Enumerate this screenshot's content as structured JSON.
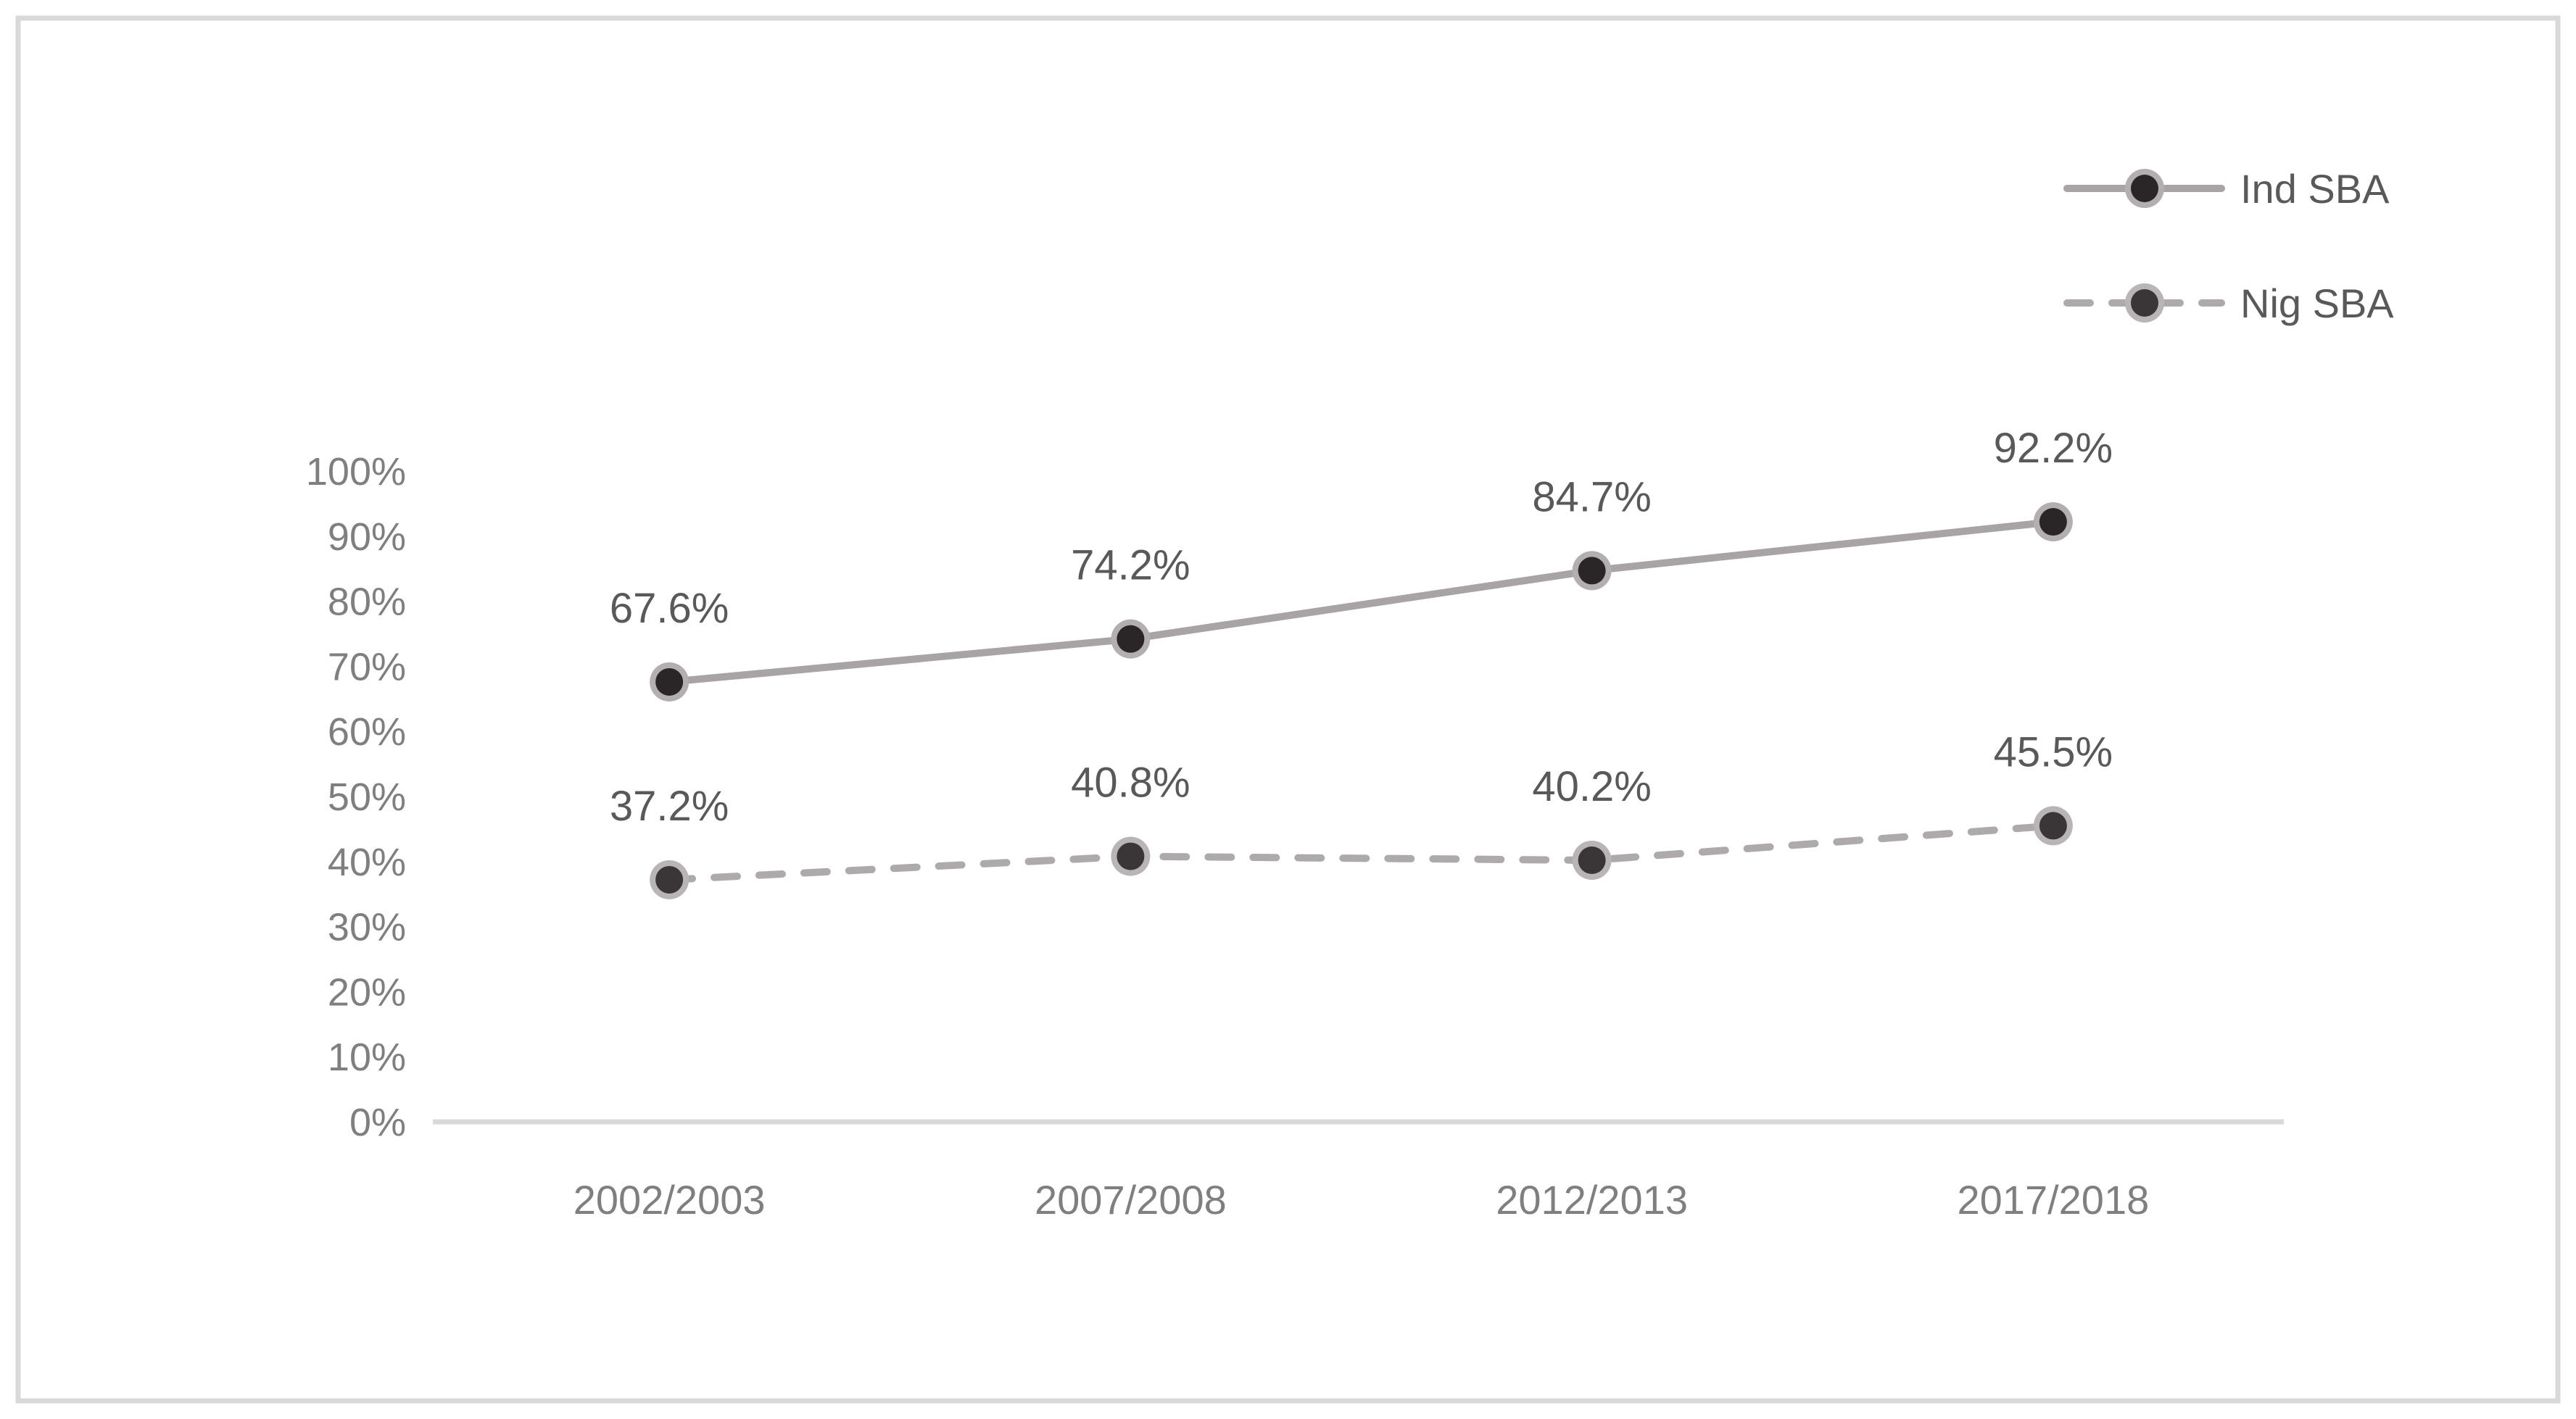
{
  "figure": {
    "background": "#ffffff",
    "border_color": "#d9d9d9"
  },
  "chart_data": {
    "type": "line",
    "title": "",
    "xlabel": "",
    "ylabel": "",
    "categories": [
      "2002/2003",
      "2007/2008",
      "2012/2013",
      "2017/2018"
    ],
    "series": [
      {
        "name": "Ind SBA",
        "values": [
          67.6,
          74.2,
          84.7,
          92.2
        ],
        "data_labels": [
          "67.6%",
          "74.2%",
          "84.7%",
          "92.2%"
        ],
        "line_style": "solid",
        "line_color": "#a8a3a4",
        "marker_color": "#2a2627",
        "marker_ring_color": "#b3afb0"
      },
      {
        "name": "Nig SBA",
        "values": [
          37.2,
          40.8,
          40.2,
          45.5
        ],
        "data_labels": [
          "37.2%",
          "40.8%",
          "40.2%",
          "45.5%"
        ],
        "line_style": "dashed",
        "line_color": "#aeaaab",
        "marker_color": "#3a3637",
        "marker_ring_color": "#b9b5b6"
      }
    ],
    "ylim": [
      0,
      100
    ],
    "y_tick_step": 10,
    "y_ticks": [
      "0%",
      "10%",
      "20%",
      "30%",
      "40%",
      "50%",
      "60%",
      "70%",
      "80%",
      "90%",
      "100%"
    ],
    "grid": false,
    "legend_position": "top-right",
    "legend": [
      "Ind SBA",
      "Nig SBA"
    ],
    "colors": {
      "axis_line": "#d9d9d9",
      "tick_label": "#7f7f7f",
      "data_label": "#595959",
      "legend_text": "#595959"
    }
  }
}
